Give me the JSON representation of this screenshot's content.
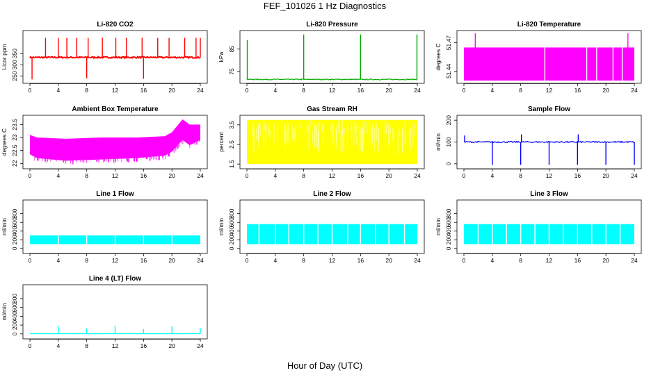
{
  "figure": {
    "title": "FEF_101026  1 Hz Diagnostics",
    "xlabel": "Hour of Day (UTC)"
  },
  "chart_data": [
    {
      "type": "line",
      "title": "Li-820 CO2",
      "ylabel": "Licor ppm",
      "color": "#ff0000",
      "xlim": [
        0,
        24
      ],
      "xticks": [
        0,
        4,
        8,
        12,
        16,
        20,
        24
      ],
      "ylim": [
        230,
        440
      ],
      "yticks": [
        250,
        300,
        350
      ],
      "baseline": 333,
      "noise": 3,
      "spikes": [
        {
          "x": 0.3,
          "y": 235
        },
        {
          "x": 2.2,
          "y": 420
        },
        {
          "x": 4.0,
          "y": 420
        },
        {
          "x": 5.2,
          "y": 420
        },
        {
          "x": 6.6,
          "y": 420
        },
        {
          "x": 8.0,
          "y": 240
        },
        {
          "x": 8.2,
          "y": 420
        },
        {
          "x": 10.2,
          "y": 420
        },
        {
          "x": 12.1,
          "y": 420
        },
        {
          "x": 13.6,
          "y": 420
        },
        {
          "x": 15.8,
          "y": 420
        },
        {
          "x": 16.0,
          "y": 238
        },
        {
          "x": 18.0,
          "y": 420
        },
        {
          "x": 19.6,
          "y": 420
        },
        {
          "x": 21.8,
          "y": 420
        },
        {
          "x": 23.4,
          "y": 420
        },
        {
          "x": 24.0,
          "y": 420
        }
      ]
    },
    {
      "type": "line",
      "title": "Li-820 Pressure",
      "ylabel": "kPa",
      "color": "#00aa00",
      "xlim": [
        0,
        24
      ],
      "xticks": [
        0,
        4,
        8,
        12,
        16,
        20,
        24
      ],
      "ylim": [
        71,
        92
      ],
      "yticks": [
        75,
        85
      ],
      "baseline": 71.5,
      "noise": 0.2,
      "spikes": [
        {
          "x": 0.05,
          "y": 89
        },
        {
          "x": 8.0,
          "y": 91.5
        },
        {
          "x": 16.0,
          "y": 91.5
        },
        {
          "x": 23.95,
          "y": 91.5
        }
      ]
    },
    {
      "type": "area",
      "title": "Li-820 Temperature",
      "ylabel": "degrees C",
      "color": "#ff00ff",
      "xlim": [
        0,
        24
      ],
      "xticks": [
        0,
        4,
        8,
        12,
        16,
        20,
        24
      ],
      "ylim": [
        51.43,
        51.48
      ],
      "yticks": [
        51.44,
        51.47
      ],
      "band": [
        51.43,
        51.465
      ],
      "spikes": [
        {
          "x": 1.6,
          "y": 51.48
        },
        {
          "x": 23.1,
          "y": 51.48
        }
      ],
      "gaps": [
        11.4,
        17.3,
        18.7,
        21.0,
        22.3
      ]
    },
    {
      "type": "area",
      "title": "Ambient Box Temperature",
      "ylabel": "degrees C",
      "color": "#ff00ff",
      "xlim": [
        0,
        24
      ],
      "xticks": [
        0,
        4,
        8,
        12,
        16,
        20,
        24
      ],
      "ylim": [
        21.9,
        23.75
      ],
      "yticks": [
        22.0,
        22.5,
        23.0,
        23.5
      ],
      "envelope": [
        {
          "x": 0,
          "lo": 22.35,
          "hi": 23.1
        },
        {
          "x": 1,
          "lo": 22.2,
          "hi": 23.0
        },
        {
          "x": 5,
          "lo": 22.1,
          "hi": 22.95
        },
        {
          "x": 10,
          "lo": 22.15,
          "hi": 23.0
        },
        {
          "x": 15,
          "lo": 22.2,
          "hi": 23.0
        },
        {
          "x": 19,
          "lo": 22.3,
          "hi": 23.05
        },
        {
          "x": 20,
          "lo": 22.45,
          "hi": 23.2
        },
        {
          "x": 21.5,
          "lo": 22.9,
          "hi": 23.7
        },
        {
          "x": 22.5,
          "lo": 22.7,
          "hi": 23.5
        },
        {
          "x": 24,
          "lo": 22.9,
          "hi": 23.5
        }
      ]
    },
    {
      "type": "area",
      "title": "Gas Stream RH",
      "ylabel": "percent",
      "color": "#ffff00",
      "xlim": [
        0,
        24
      ],
      "xticks": [
        0,
        4,
        8,
        12,
        16,
        20,
        24
      ],
      "ylim": [
        1.4,
        3.85
      ],
      "yticks": [
        1.5,
        2.5,
        3.5
      ],
      "band": [
        1.5,
        3.75
      ]
    },
    {
      "type": "line",
      "title": "Sample Flow",
      "ylabel": "ml/min",
      "color": "#0000ff",
      "xlim": [
        0,
        24
      ],
      "xticks": [
        0,
        4,
        8,
        12,
        16,
        20,
        24
      ],
      "ylim": [
        -10,
        210
      ],
      "yticks": [
        0,
        100,
        200
      ],
      "baseline": 100,
      "noise": 3,
      "spikes": [
        {
          "x": 0.1,
          "y": 130
        },
        {
          "x": 4.0,
          "y": -5
        },
        {
          "x": 8.0,
          "y": -5
        },
        {
          "x": 8.1,
          "y": 135
        },
        {
          "x": 12.0,
          "y": -5
        },
        {
          "x": 16.0,
          "y": -5
        },
        {
          "x": 16.1,
          "y": 135
        },
        {
          "x": 20.0,
          "y": -5
        },
        {
          "x": 24.0,
          "y": -5
        }
      ]
    },
    {
      "type": "area",
      "title": "Line 1 Flow",
      "ylabel": "ml/min",
      "color": "#00ffff",
      "xlim": [
        0,
        24
      ],
      "xticks": [
        0,
        4,
        8,
        12,
        16,
        20,
        24
      ],
      "ylim": [
        -50,
        1050
      ],
      "yticks": [
        0,
        200,
        400,
        600,
        800
      ],
      "band": [
        100,
        300
      ],
      "gaps": [
        4.0,
        8.0,
        12.0,
        16.0,
        20.0
      ]
    },
    {
      "type": "area",
      "title": "Line 2 Flow",
      "ylabel": "ml/min",
      "color": "#00ffff",
      "xlim": [
        0,
        24
      ],
      "xticks": [
        0,
        4,
        8,
        12,
        16,
        20,
        24
      ],
      "ylim": [
        -50,
        1050
      ],
      "yticks": [
        0,
        200,
        400,
        600,
        800
      ],
      "band": [
        100,
        560
      ],
      "gaps": [
        1.7,
        4.0,
        5.9,
        8.0,
        10.0,
        12.0,
        14.2,
        16.0,
        18.1,
        20.0,
        22.2
      ]
    },
    {
      "type": "area",
      "title": "Line 3 Flow",
      "ylabel": "ml/min",
      "color": "#00ffff",
      "xlim": [
        0,
        24
      ],
      "xticks": [
        0,
        4,
        8,
        12,
        16,
        20,
        24
      ],
      "ylim": [
        -50,
        1050
      ],
      "yticks": [
        0,
        200,
        400,
        600,
        800
      ],
      "band": [
        100,
        560
      ],
      "gaps": [
        2.0,
        4.0,
        6.0,
        8.0,
        10.0,
        12.0,
        14.0,
        16.0,
        18.0,
        20.0,
        22.0
      ]
    },
    {
      "type": "line",
      "title": "Line 4 (LT) Flow",
      "ylabel": "ml/min",
      "color": "#00ffff",
      "xlim": [
        0,
        24
      ],
      "xticks": [
        0,
        4,
        8,
        12,
        16,
        20,
        24
      ],
      "ylim": [
        -50,
        1050
      ],
      "yticks": [
        0,
        200,
        400,
        600,
        800
      ],
      "baseline": 5,
      "noise": 2,
      "spikes": [
        {
          "x": 4.0,
          "y": 180
        },
        {
          "x": 8.0,
          "y": 120
        },
        {
          "x": 12.0,
          "y": 180
        },
        {
          "x": 16.0,
          "y": 110
        },
        {
          "x": 20.0,
          "y": 170
        },
        {
          "x": 24.0,
          "y": 130
        }
      ]
    }
  ]
}
